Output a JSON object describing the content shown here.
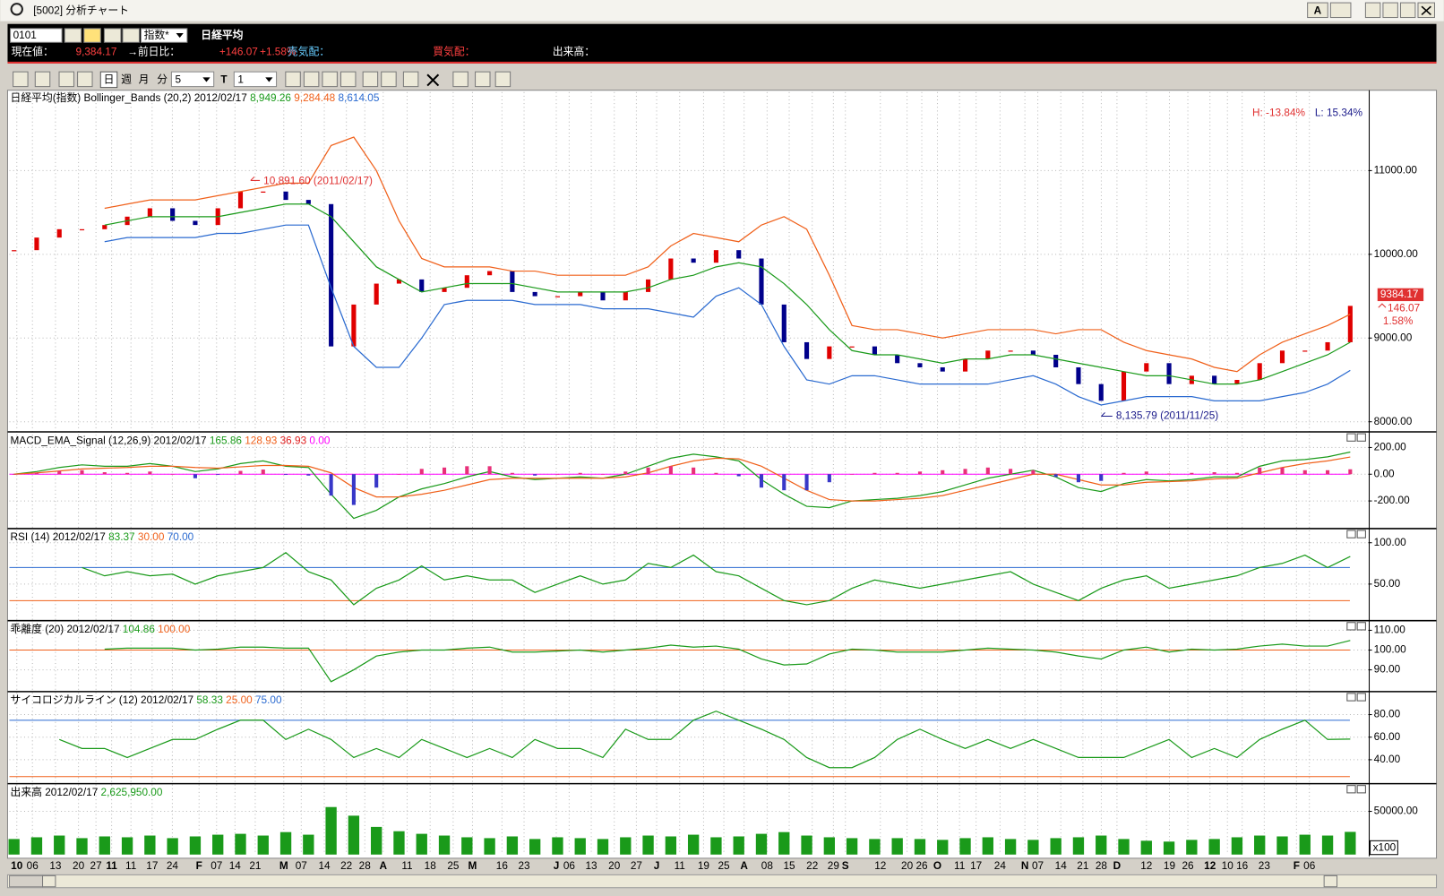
{
  "window": {
    "title": "[5002] 分析チャート",
    "button": "A"
  },
  "info_bar": {
    "code": "0101",
    "kind": "指数*",
    "name": "日経平均",
    "price_label": "現在値：",
    "price": "9,384.17",
    "change_label": "→前日比：",
    "change": "+146.07",
    "change_pct": "+1.58%",
    "ask_label": "売気配：",
    "bid_label": "買気配：",
    "volume_label": "出来高："
  },
  "toolbar": {
    "day": "日",
    "week": "週",
    "month": "月",
    "minute": "分",
    "minute_value": "5",
    "text_tool": "T",
    "text_value": "1"
  },
  "chart_data": [
    {
      "type": "candlestick",
      "title": "日経平均(指数) Bollinger_Bands (20,2) 2012/02/17",
      "ylim": [
        7890,
        11960
      ],
      "yticks": [
        {
          "value": 11000,
          "label": "11000.00"
        },
        {
          "value": 10000,
          "label": "10000.00"
        },
        {
          "value": 9000,
          "label": "9000.00"
        },
        {
          "value": 8000,
          "label": "8000.00"
        }
      ],
      "series": [
        {
          "style": "candle",
          "color": "#e00000",
          "color_down": "#00008b",
          "values": [
            10050,
            10200,
            10300,
            10300,
            10350,
            10450,
            10550,
            10400,
            10350,
            10550,
            10750,
            10750,
            10650,
            10600,
            8900,
            9400,
            9650,
            9700,
            9550,
            9600,
            9750,
            9800,
            9550,
            9500,
            9500,
            9550,
            9450,
            9550,
            9700,
            9950,
            9900,
            10050,
            9950,
            9400,
            8950,
            8750,
            8900,
            8900,
            8800,
            8700,
            8650,
            8600,
            8750,
            8850,
            8850,
            8800,
            8650,
            8450,
            8250,
            8600,
            8700,
            8450,
            8550,
            8450,
            8500,
            8700,
            8850,
            8850,
            8950,
            9384.17
          ]
        },
        {
          "style": "line",
          "color": "#1a9a1a",
          "last_label": "8,949.26",
          "values": [
            null,
            null,
            null,
            null,
            10350,
            10400,
            10450,
            10450,
            10450,
            10450,
            10500,
            10550,
            10600,
            10600,
            10450,
            10150,
            9850,
            9700,
            9550,
            9600,
            9650,
            9650,
            9650,
            9600,
            9550,
            9550,
            9550,
            9550,
            9600,
            9700,
            9750,
            9850,
            9900,
            9850,
            9650,
            9400,
            9100,
            8850,
            8800,
            8800,
            8750,
            8700,
            8750,
            8750,
            8800,
            8800,
            8750,
            8700,
            8650,
            8600,
            8550,
            8550,
            8500,
            8450,
            8450,
            8500,
            8600,
            8700,
            8800,
            8949.26
          ]
        },
        {
          "style": "line",
          "color": "#f0601a",
          "last_label": "9,284.48",
          "values": [
            null,
            null,
            null,
            null,
            10550,
            10600,
            10650,
            10650,
            10650,
            10700,
            10750,
            10800,
            10850,
            10850,
            11300,
            11400,
            11000,
            10400,
            9950,
            9850,
            9850,
            9850,
            9800,
            9800,
            9750,
            9750,
            9750,
            9750,
            9850,
            10100,
            10250,
            10200,
            10150,
            10350,
            10450,
            10300,
            9750,
            9150,
            9100,
            9100,
            9050,
            9000,
            9050,
            9100,
            9100,
            9100,
            9050,
            9100,
            9100,
            8950,
            8850,
            8800,
            8750,
            8650,
            8600,
            8800,
            8950,
            9050,
            9150,
            9284.48
          ]
        },
        {
          "style": "line",
          "color": "#2a6ad0",
          "last_label": "8,614.05",
          "values": [
            null,
            null,
            null,
            null,
            10150,
            10200,
            10200,
            10200,
            10200,
            10250,
            10250,
            10300,
            10350,
            10350,
            9600,
            8900,
            8650,
            8650,
            9000,
            9400,
            9450,
            9450,
            9450,
            9400,
            9400,
            9400,
            9350,
            9350,
            9350,
            9300,
            9250,
            9500,
            9600,
            9400,
            8900,
            8500,
            8450,
            8550,
            8550,
            8500,
            8450,
            8450,
            8450,
            8450,
            8500,
            8550,
            8450,
            8300,
            8200,
            8250,
            8300,
            8300,
            8300,
            8250,
            8250,
            8250,
            8300,
            8350,
            8450,
            8614.05
          ]
        }
      ],
      "annotations": [
        "10,891.60 (2011/02/17)",
        "8,135.79 (2011/11/25)"
      ],
      "high_low": [
        "H: -13.84%",
        "L: 15.34%"
      ],
      "price_tag": [
        "9384.17",
        "146.07",
        "1.58%"
      ]
    },
    {
      "type": "line",
      "title": "MACD_EMA_Signal (12,26,9) 2012/02/17",
      "ylim": [
        -393,
        310
      ],
      "yticks": [
        {
          "value": 200,
          "label": "200.00"
        },
        {
          "value": 0,
          "label": "0.00"
        },
        {
          "value": -200,
          "label": "-200.00"
        }
      ],
      "series": [
        {
          "style": "line",
          "color": "#1a9a1a",
          "last_label": "165.86",
          "values": [
            0,
            20,
            50,
            70,
            60,
            60,
            80,
            60,
            20,
            40,
            80,
            100,
            60,
            50,
            -150,
            -330,
            -270,
            -170,
            -110,
            -70,
            -20,
            20,
            -20,
            -40,
            -30,
            -20,
            -30,
            0,
            60,
            120,
            150,
            130,
            100,
            -40,
            -150,
            -240,
            -250,
            -200,
            -190,
            -180,
            -160,
            -130,
            -80,
            -30,
            0,
            30,
            -20,
            -100,
            -130,
            -70,
            -40,
            -50,
            -40,
            -20,
            -20,
            60,
            100,
            110,
            130,
            165.86
          ]
        },
        {
          "style": "line",
          "color": "#f0601a",
          "last_label": "128.93",
          "values": [
            0,
            10,
            25,
            40,
            45,
            50,
            60,
            60,
            50,
            45,
            55,
            65,
            65,
            60,
            10,
            -100,
            -170,
            -170,
            -150,
            -120,
            -80,
            -40,
            -30,
            -30,
            -30,
            -30,
            -30,
            -20,
            10,
            60,
            100,
            120,
            115,
            60,
            -30,
            -120,
            -190,
            -200,
            -200,
            -190,
            -180,
            -160,
            -120,
            -80,
            -40,
            0,
            0,
            -40,
            -80,
            -80,
            -60,
            -55,
            -50,
            -35,
            -30,
            10,
            50,
            80,
            100,
            128.93
          ]
        },
        {
          "style": "bar",
          "color": "#e8307a",
          "color_negative": "#3838c8",
          "label_color": "#e02020",
          "last_label": "36.93",
          "values": [
            0,
            10,
            25,
            30,
            15,
            10,
            20,
            0,
            -30,
            -5,
            25,
            35,
            -5,
            -10,
            -160,
            -230,
            -100,
            0,
            40,
            50,
            60,
            60,
            10,
            -10,
            0,
            10,
            0,
            20,
            50,
            60,
            50,
            10,
            -15,
            -100,
            -120,
            -120,
            -60,
            0,
            10,
            10,
            20,
            30,
            40,
            50,
            40,
            30,
            -20,
            -60,
            -50,
            10,
            20,
            5,
            10,
            15,
            10,
            50,
            50,
            30,
            30,
            36.93
          ]
        }
      ],
      "reference_lines": [
        {
          "value": 0,
          "label": "0.00",
          "color": "#ff00ff"
        }
      ]
    },
    {
      "type": "line",
      "title": "RSI (14) 2012/02/17",
      "ylim": [
        8,
        116
      ],
      "yticks": [
        {
          "value": 100,
          "label": "100.00"
        },
        {
          "value": 50,
          "label": "50.00"
        }
      ],
      "series": [
        {
          "style": "line",
          "color": "#1a9a1a",
          "last_label": "83.37",
          "values": [
            null,
            null,
            null,
            70,
            60,
            65,
            60,
            62,
            50,
            60,
            65,
            70,
            88,
            65,
            55,
            25,
            45,
            55,
            72,
            55,
            60,
            55,
            55,
            40,
            50,
            60,
            50,
            55,
            75,
            70,
            85,
            65,
            60,
            45,
            30,
            25,
            30,
            45,
            55,
            50,
            45,
            50,
            55,
            60,
            65,
            50,
            40,
            30,
            45,
            55,
            60,
            45,
            50,
            55,
            60,
            70,
            75,
            85,
            70,
            83.37
          ]
        }
      ],
      "reference_lines": [
        {
          "value": 30,
          "label": "30.00",
          "color": "#f0601a"
        },
        {
          "value": 70,
          "label": "70.00",
          "color": "#2a6ad0"
        }
      ]
    },
    {
      "type": "line",
      "title": "乖離度 (20) 2012/02/17",
      "ylim": [
        79.5,
        114.4
      ],
      "yticks": [
        {
          "value": 110,
          "label": "110.00"
        },
        {
          "value": 100,
          "label": "100.00"
        },
        {
          "value": 90,
          "label": "90.00"
        }
      ],
      "series": [
        {
          "style": "line",
          "color": "#1a9a1a",
          "last_label": "104.86",
          "values": [
            null,
            null,
            null,
            null,
            100.5,
            101,
            101,
            101,
            100,
            100.5,
            101.5,
            101.5,
            101,
            101,
            84,
            90,
            97,
            99,
            100,
            100,
            101,
            101.5,
            99,
            99,
            99.5,
            100,
            99,
            100,
            101,
            102.5,
            101.5,
            102,
            100.5,
            95.5,
            92.5,
            93,
            98,
            100.5,
            100,
            99,
            99,
            99,
            100,
            101,
            100.5,
            100,
            99,
            97,
            95.5,
            100,
            101.5,
            99,
            100.5,
            100,
            100.5,
            102,
            103,
            102,
            102,
            104.86
          ]
        }
      ],
      "reference_lines": [
        {
          "value": 100,
          "label": "100.00",
          "color": "#f0601a"
        }
      ]
    },
    {
      "type": "line",
      "title": "サイコロジカルライン (12) 2012/02/17",
      "ylim": [
        19.6,
        99.6
      ],
      "yticks": [
        {
          "value": 80,
          "label": "80.00"
        },
        {
          "value": 60,
          "label": "60.00"
        },
        {
          "value": 40,
          "label": "40.00"
        }
      ],
      "series": [
        {
          "style": "line",
          "color": "#1a9a1a",
          "last_label": "58.33",
          "values": [
            null,
            null,
            58,
            50,
            50,
            42,
            50,
            58,
            58,
            67,
            75,
            75,
            58,
            67,
            58,
            42,
            50,
            42,
            58,
            50,
            42,
            50,
            42,
            58,
            50,
            50,
            42,
            67,
            58,
            58,
            75,
            83,
            75,
            67,
            58,
            42,
            33,
            33,
            42,
            58,
            67,
            58,
            50,
            58,
            50,
            58,
            50,
            42,
            42,
            42,
            50,
            58,
            42,
            50,
            42,
            58,
            67,
            75,
            58,
            58.33
          ]
        }
      ],
      "reference_lines": [
        {
          "value": 25,
          "label": "25.00",
          "color": "#f0601a"
        },
        {
          "value": 75,
          "label": "75.00",
          "color": "#2a6ad0"
        }
      ]
    },
    {
      "type": "bar",
      "title": "出来高 2012/02/17",
      "ylim": [
        0,
        81000
      ],
      "yticks": [
        {
          "value": 50000,
          "label": "50000.00"
        }
      ],
      "unit_label": "x100",
      "series": [
        {
          "style": "bar",
          "color": "#1a9a1a",
          "last_label": "2,625,950.00",
          "values": [
            18000,
            20000,
            22000,
            19000,
            21000,
            20000,
            22000,
            19000,
            21000,
            23000,
            24000,
            22000,
            26000,
            23000,
            55000,
            45000,
            32000,
            27000,
            24000,
            22000,
            20000,
            19000,
            21000,
            18000,
            20000,
            19000,
            18000,
            20000,
            22000,
            21000,
            23000,
            20000,
            21000,
            24000,
            26000,
            22000,
            20000,
            19000,
            18000,
            19000,
            18000,
            17000,
            19000,
            20000,
            18000,
            17000,
            19000,
            20000,
            22000,
            18000,
            16000,
            15000,
            17000,
            18000,
            20000,
            22000,
            21000,
            23000,
            22000,
            26259.5
          ]
        }
      ]
    }
  ],
  "x_axis": {
    "labels": [
      "10",
      "06",
      "13",
      "20",
      "27",
      "11",
      "11",
      "17",
      "24",
      "F",
      "07",
      "14",
      "21",
      "M",
      "07",
      "14",
      "22",
      "28",
      "A",
      "11",
      "18",
      "25",
      "M",
      "16",
      "23",
      "J",
      "06",
      "13",
      "20",
      "27",
      "J",
      "11",
      "19",
      "25",
      "A",
      "08",
      "15",
      "22",
      "29",
      "S",
      "12",
      "20",
      "26",
      "O",
      "11",
      "17",
      "24",
      "N",
      "07",
      "14",
      "21",
      "28",
      "D",
      "12",
      "19",
      "26",
      "12",
      "10",
      "16",
      "23",
      "F",
      "06"
    ]
  }
}
